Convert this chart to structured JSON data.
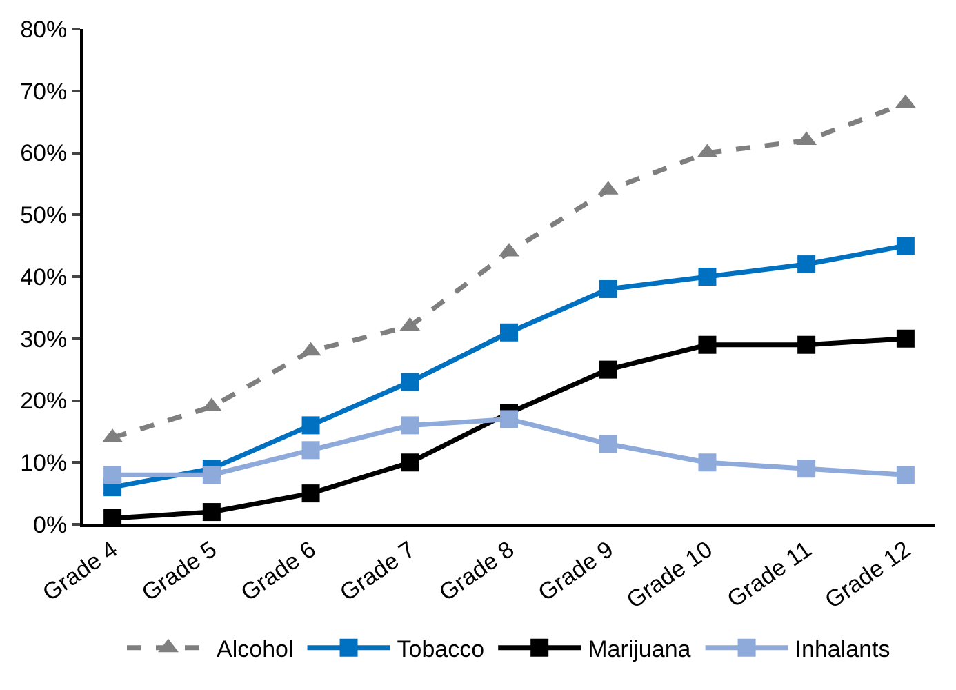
{
  "chart_data": {
    "type": "line",
    "categories": [
      "Grade 4",
      "Grade 5",
      "Grade 6",
      "Grade 7",
      "Grade 8",
      "Grade 9",
      "Grade 10",
      "Grade 11",
      "Grade 12"
    ],
    "series": [
      {
        "name": "Alcohol",
        "color": "#7f7f7f",
        "marker": "triangle",
        "line_style": "dashed",
        "values": [
          14,
          19,
          28,
          32,
          44,
          54,
          60,
          62,
          68
        ]
      },
      {
        "name": "Tobacco",
        "color": "#0070c0",
        "marker": "square",
        "line_style": "solid",
        "values": [
          6,
          9,
          16,
          23,
          31,
          38,
          40,
          42,
          45
        ]
      },
      {
        "name": "Marijuana",
        "color": "#000000",
        "marker": "square",
        "line_style": "solid",
        "values": [
          1,
          2,
          5,
          10,
          18,
          25,
          29,
          29,
          30
        ]
      },
      {
        "name": "Inhalants",
        "color": "#8eaadb",
        "marker": "square",
        "line_style": "solid",
        "values": [
          8,
          8,
          12,
          16,
          17,
          13,
          10,
          9,
          8
        ]
      }
    ],
    "ylim": [
      0,
      80
    ],
    "yticks": [
      {
        "value": 0,
        "label": "0%"
      },
      {
        "value": 10,
        "label": "10%"
      },
      {
        "value": 20,
        "label": "20%"
      },
      {
        "value": 30,
        "label": "30%"
      },
      {
        "value": 40,
        "label": "40%"
      },
      {
        "value": 50,
        "label": "50%"
      },
      {
        "value": 60,
        "label": "60%"
      },
      {
        "value": 70,
        "label": "70%"
      },
      {
        "value": 80,
        "label": "80%"
      }
    ],
    "legend": "bottom"
  }
}
